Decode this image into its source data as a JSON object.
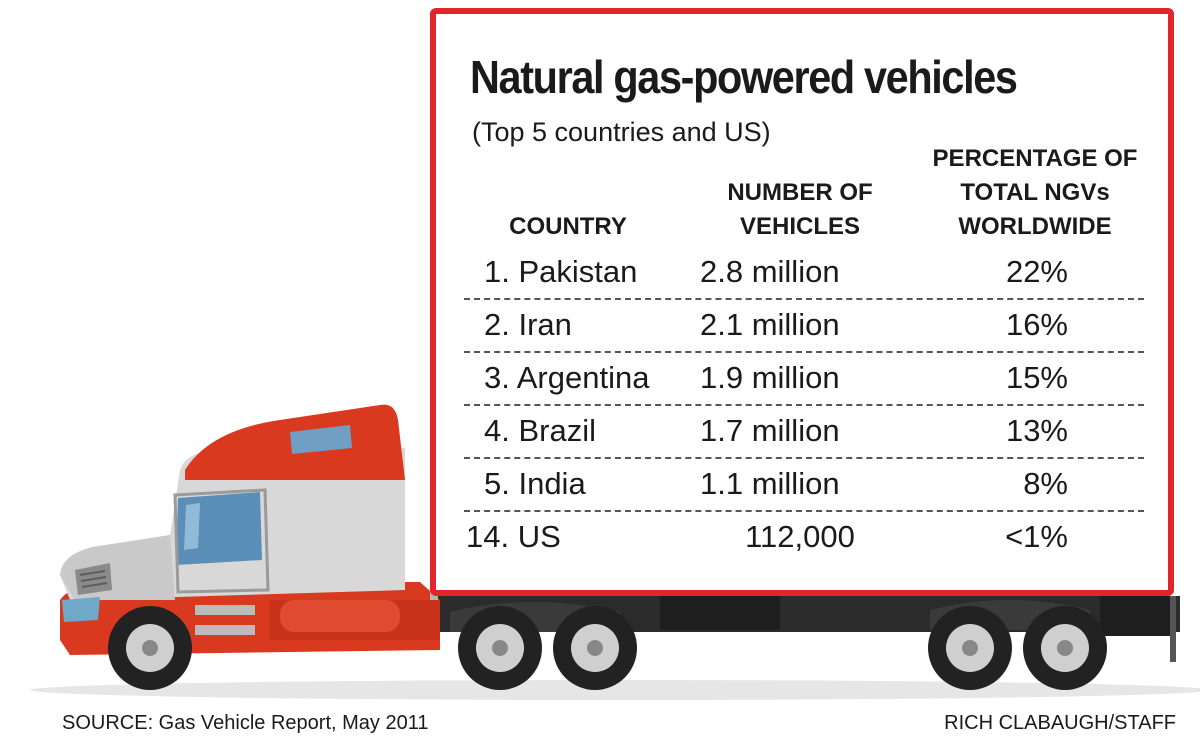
{
  "chart_data": {
    "type": "table",
    "title": "Natural gas-powered vehicles",
    "subtitle": "(Top 5 countries and US)",
    "columns": [
      "COUNTRY",
      "NUMBER OF\nVEHICLES",
      "PERCENTAGE OF\nTOTAL NGVs\nWORLDWIDE"
    ],
    "rows": [
      {
        "country": "1. Pakistan",
        "vehicles": "2.8 million",
        "percent": "22%"
      },
      {
        "country": "2. Iran",
        "vehicles": "2.1 million",
        "percent": "16%"
      },
      {
        "country": "3. Argentina",
        "vehicles": "1.9 million",
        "percent": "15%"
      },
      {
        "country": "4. Brazil",
        "vehicles": "1.7 million",
        "percent": "13%"
      },
      {
        "country": "5. India",
        "vehicles": "1.1 million",
        "percent": "8%"
      },
      {
        "country": "14. US",
        "vehicles": "112,000",
        "percent": "<1%"
      }
    ],
    "source": "SOURCE: Gas Vehicle Report, May 2011",
    "credit": "RICH CLABAUGH/STAFF"
  },
  "colors": {
    "border": "#e2252b",
    "cab_red": "#d9391f",
    "cab_gray": "#d8d8d8",
    "tire": "#222222",
    "text": "#1a1a1a"
  },
  "icons": [
    "semi-truck-illustration"
  ]
}
